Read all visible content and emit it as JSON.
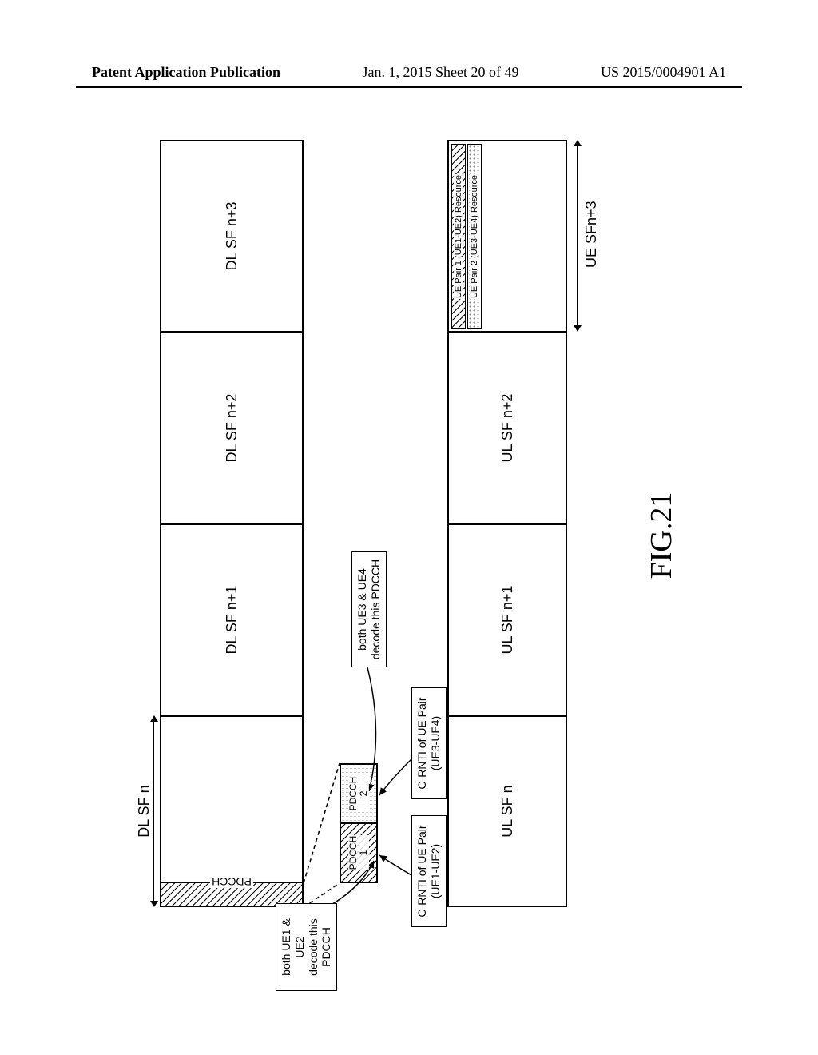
{
  "header": {
    "left": "Patent Application Publication",
    "center": "Jan. 1, 2015  Sheet 20 of 49",
    "right": "US 2015/0004901 A1"
  },
  "figure": {
    "caption": "FIG.21",
    "dl_label_top": "DL SF n",
    "dl_cells": [
      "DL SF n+1",
      "DL SF n+2",
      "DL SF n+3"
    ],
    "ul_cells": [
      "UL SF n",
      "UL SF n+1",
      "UL SF n+2"
    ],
    "ul_label_bottom": "UE SFn+3",
    "pdcch_band_label": "PDCCH",
    "zoom_cells": [
      "PDCCH\n1",
      "PDCCH\n2"
    ],
    "callout_ue12": "both UE1 & UE2\ndecode this\nPDCCH",
    "callout_ue34": "both UE3 & UE4\ndecode this PDCCH",
    "crnti_pair1": "C-RNTI of UE Pair\n(UE1-UE2)",
    "crnti_pair2": "C-RNTI of UE Pair\n(UE3-UE4)",
    "resource_pair1": "UE Pair 1 (UE1-UE2) Resource",
    "resource_pair2": "UE Pair 2 (UE3-UE4) Resource",
    "colors": {
      "stroke": "#000000",
      "bg": "#ffffff"
    }
  }
}
